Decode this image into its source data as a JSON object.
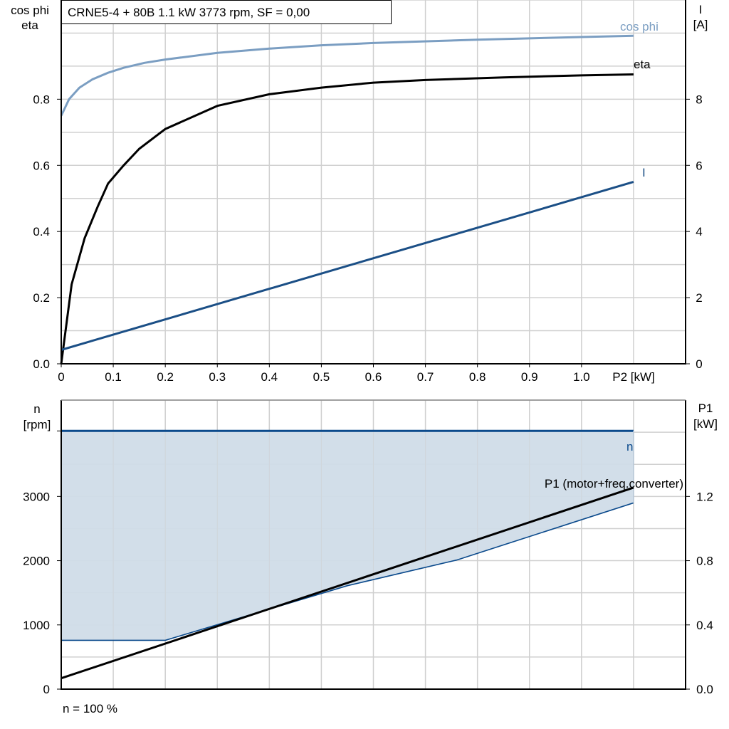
{
  "title": "CRNE5-4 + 80B   1.1 kW   3773 rpm, SF = 0,00",
  "footer": "n = 100 %",
  "colors": {
    "cosphi": "#7b9ec2",
    "eta": "#000000",
    "current": "#1b4f86",
    "n": "#0b4a8c",
    "n_fill": "#d0dce8",
    "p1": "#000000",
    "grid": "#d0d0d0"
  },
  "chart_data": [
    {
      "type": "line",
      "xlabel": "P2 [kW]",
      "ylabel_left": [
        "cos phi",
        "eta"
      ],
      "ylabel_right": [
        "I",
        "[A]"
      ],
      "xlim": [
        0,
        1.2
      ],
      "ylim_left": [
        0,
        1.1
      ],
      "ylim_right": [
        0,
        11
      ],
      "xticks": [
        "0",
        "0.1",
        "0.2",
        "0.3",
        "0.4",
        "0.5",
        "0.6",
        "0.7",
        "0.8",
        "0.9",
        "1.0"
      ],
      "yticks_left": [
        "0.0",
        "0.2",
        "0.4",
        "0.6",
        "0.8"
      ],
      "yticks_right": [
        "0",
        "2",
        "4",
        "6",
        "8"
      ],
      "grid": true,
      "series": [
        {
          "name": "cos phi",
          "axis": "left",
          "x": [
            0,
            0.015,
            0.035,
            0.06,
            0.09,
            0.12,
            0.16,
            0.2,
            0.3,
            0.4,
            0.5,
            0.6,
            0.8,
            1.0,
            1.1
          ],
          "y": [
            0.75,
            0.8,
            0.835,
            0.86,
            0.88,
            0.895,
            0.91,
            0.92,
            0.94,
            0.953,
            0.963,
            0.97,
            0.98,
            0.988,
            0.992
          ]
        },
        {
          "name": "eta",
          "axis": "left",
          "x": [
            0,
            0.02,
            0.045,
            0.07,
            0.09,
            0.12,
            0.15,
            0.2,
            0.3,
            0.4,
            0.5,
            0.6,
            0.7,
            0.85,
            1.0,
            1.1
          ],
          "y": [
            0.0,
            0.24,
            0.38,
            0.475,
            0.545,
            0.6,
            0.65,
            0.71,
            0.78,
            0.815,
            0.835,
            0.85,
            0.858,
            0.866,
            0.872,
            0.875
          ]
        },
        {
          "name": "I",
          "axis": "right",
          "x": [
            0,
            1.1
          ],
          "y": [
            0.42,
            5.5
          ]
        }
      ]
    },
    {
      "type": "area",
      "xlim": [
        0,
        1.2
      ],
      "ylabel_left": [
        "n",
        "[rpm]"
      ],
      "ylabel_right": [
        "P1",
        "[kW]"
      ],
      "ylim_left": [
        0,
        4500
      ],
      "ylim_right": [
        0,
        1.8
      ],
      "yticks_left": [
        "0",
        "1000",
        "2000",
        "3000"
      ],
      "yticks_right": [
        "0.0",
        "0.4",
        "0.8",
        "1.2"
      ],
      "grid": true,
      "series": [
        {
          "name": "n",
          "axis": "left",
          "x": [
            0,
            1.1
          ],
          "y": [
            4020,
            4020
          ],
          "lower": {
            "x": [
              0,
              0.2,
              0.55,
              0.76,
              1.1
            ],
            "y": [
              760,
              760,
              1610,
              2010,
              2900
            ]
          }
        },
        {
          "name": "P1 (motor+freq.converter)",
          "axis": "right",
          "x": [
            0,
            1.1
          ],
          "y": [
            0.068,
            1.255
          ]
        }
      ]
    }
  ]
}
